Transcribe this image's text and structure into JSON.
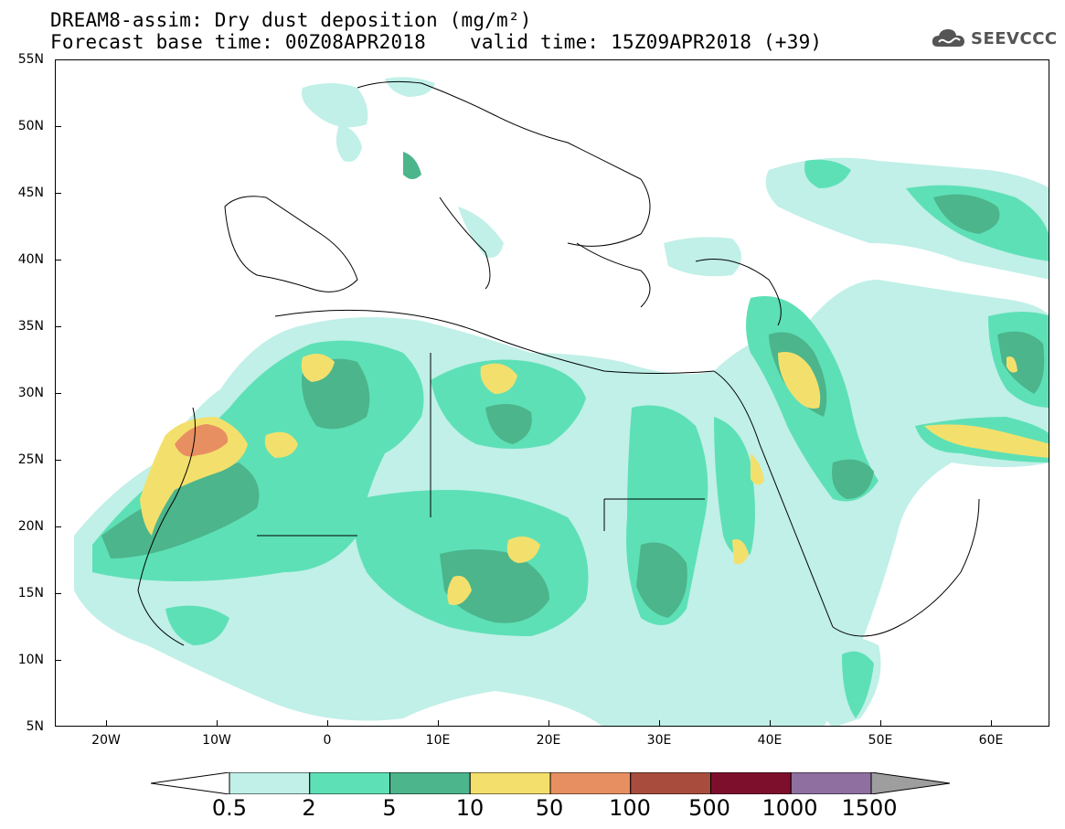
{
  "header": {
    "title_line1": "DREAM8-assim: Dry dust deposition (mg/m²)",
    "base_time_label": "Forecast base time: 00Z08APR2018",
    "valid_time_label": "valid time: 15Z09APR2018 (+39)"
  },
  "logo": {
    "text": "SEEVCCC",
    "icon": "cloud-icon"
  },
  "axes": {
    "lat_labels": [
      "55N",
      "50N",
      "45N",
      "40N",
      "35N",
      "30N",
      "25N",
      "20N",
      "15N",
      "10N",
      "5N"
    ],
    "lon_labels": [
      "20W",
      "10W",
      "0",
      "10E",
      "20E",
      "30E",
      "40E",
      "50E",
      "60E"
    ],
    "lat_range": [
      5,
      55
    ],
    "lon_range": [
      -25,
      65
    ]
  },
  "legend": {
    "levels": [
      "0.5",
      "2",
      "5",
      "10",
      "50",
      "100",
      "500",
      "1000",
      "1500"
    ],
    "colors": [
      "#c0f0e8",
      "#5ee0b6",
      "#4cb58c",
      "#f3e06c",
      "#e88f62",
      "#a84c3e",
      "#7e0f2c",
      "#8e6fa0",
      "#9e9e9e"
    ],
    "units": "mg/m²"
  },
  "colors": {
    "light": "#c0f0e8",
    "medium": "#5ee0b6",
    "dark": "#4cb58c",
    "yellow": "#f3e06c",
    "orange": "#e88f62"
  }
}
